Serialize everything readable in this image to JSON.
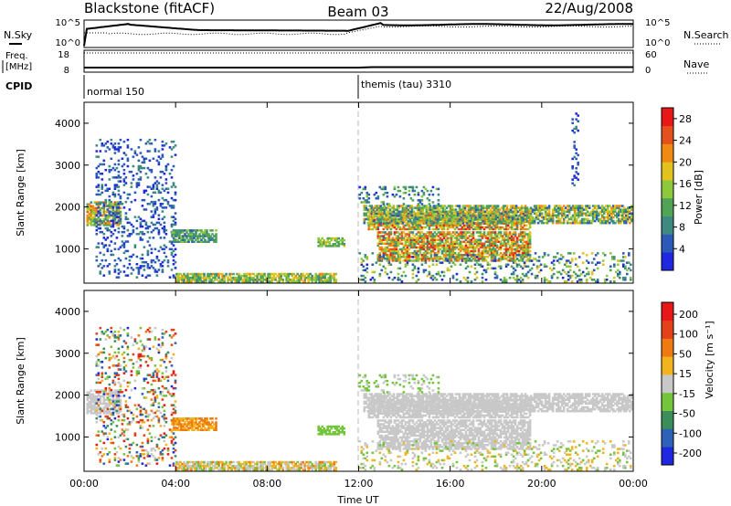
{
  "header": {
    "station": "Blackstone (fitACF)",
    "beam": "Beam 03",
    "date": "22/Aug/2008"
  },
  "top_panels": {
    "nsky_label": "N.Sky",
    "nsearch_label": "N.Search",
    "freq_label_1": "Freq.",
    "freq_label_2": "[MHz]",
    "nave_label": "Nave",
    "cpid_label": "CPID",
    "count_ticks": [
      "10^5",
      "10^0"
    ],
    "freq_ticks": [
      "18",
      "8"
    ],
    "nave_ticks": [
      "60",
      "0"
    ],
    "cpid_modes": [
      {
        "label": "normal 150",
        "start_hour": 0,
        "end_hour": 12
      },
      {
        "label": "themis (tau) 3310",
        "start_hour": 12,
        "end_hour": 24
      }
    ]
  },
  "chart_data": [
    {
      "type": "heatmap",
      "name": "power",
      "ylabel": "Slant Range [km]",
      "xlabel": "",
      "xlim": [
        0,
        24
      ],
      "ylim": [
        180,
        4500
      ],
      "y_ticks": [
        1000,
        2000,
        3000,
        4000
      ],
      "x_ticks": [
        "00:00",
        "04:00",
        "08:00",
        "12:00",
        "16:00",
        "20:00",
        "00:00"
      ],
      "colorbar_label": "Power [dB]",
      "colorbar_ticks": [
        4,
        8,
        12,
        16,
        20,
        24,
        28
      ],
      "colorbar_range": [
        0,
        30
      ],
      "colors": [
        "#1f28e0",
        "#2d59b8",
        "#3e8a80",
        "#51a455",
        "#8ec83c",
        "#e2c21c",
        "#f08a12",
        "#e4511c",
        "#e81818"
      ],
      "regions": [
        {
          "t": [
            0.1,
            1.6
          ],
          "r": [
            1550,
            2100
          ],
          "level": [
            2,
            7
          ]
        },
        {
          "t": [
            0.5,
            4.0
          ],
          "r": [
            300,
            3600
          ],
          "level": [
            0,
            2
          ],
          "sparse": true
        },
        {
          "t": [
            3.8,
            5.8
          ],
          "r": [
            1150,
            1450
          ],
          "level": [
            1,
            4
          ]
        },
        {
          "t": [
            4.0,
            11.0
          ],
          "r": [
            200,
            420
          ],
          "level": [
            2,
            6
          ]
        },
        {
          "t": [
            10.2,
            11.4
          ],
          "r": [
            1050,
            1250
          ],
          "level": [
            2,
            5
          ]
        },
        {
          "t": [
            12.4,
            19.5
          ],
          "r": [
            1450,
            1900
          ],
          "level": [
            2,
            8
          ]
        },
        {
          "t": [
            12.8,
            19.5
          ],
          "r": [
            700,
            1400
          ],
          "level": [
            2,
            8
          ]
        },
        {
          "t": [
            12.2,
            23.9
          ],
          "r": [
            1600,
            2050
          ],
          "level": [
            1,
            6
          ]
        },
        {
          "t": [
            12.0,
            15.5
          ],
          "r": [
            2050,
            2500
          ],
          "level": [
            0,
            4
          ],
          "sparse": true
        },
        {
          "t": [
            12.0,
            23.9
          ],
          "r": [
            200,
            900
          ],
          "level": [
            0,
            5
          ],
          "sparse": true
        },
        {
          "t": [
            21.3,
            21.6
          ],
          "r": [
            2500,
            4300
          ],
          "level": [
            0,
            2
          ],
          "sparse": true
        }
      ]
    },
    {
      "type": "heatmap",
      "name": "velocity",
      "ylabel": "Slant Range [km]",
      "xlabel": "Time UT",
      "xlim": [
        0,
        24
      ],
      "ylim": [
        180,
        4500
      ],
      "y_ticks": [
        1000,
        2000,
        3000,
        4000
      ],
      "x_ticks": [
        "00:00",
        "04:00",
        "08:00",
        "12:00",
        "16:00",
        "20:00",
        "00:00"
      ],
      "colorbar_label": "Velocity [m s⁻¹]",
      "colorbar_ticks": [
        "200",
        "100",
        "50",
        "15",
        "-15",
        "-50",
        "-100",
        "-200"
      ],
      "colors": [
        "#1f28e0",
        "#2e62b8",
        "#3b8e5a",
        "#74c53c",
        "#c8c8c8",
        "#f2b41c",
        "#f07a12",
        "#e4401a",
        "#e81818"
      ],
      "regions": [
        {
          "t": [
            0.1,
            1.6
          ],
          "r": [
            1550,
            2100
          ],
          "level": [
            4,
            4
          ]
        },
        {
          "t": [
            0.5,
            4.0
          ],
          "r": [
            300,
            3600
          ],
          "level": [
            0,
            8
          ],
          "sparse": true
        },
        {
          "t": [
            3.8,
            5.8
          ],
          "r": [
            1150,
            1450
          ],
          "level": [
            5,
            6
          ]
        },
        {
          "t": [
            4.0,
            11.0
          ],
          "r": [
            200,
            420
          ],
          "level": [
            3,
            6
          ]
        },
        {
          "t": [
            10.2,
            11.4
          ],
          "r": [
            1050,
            1250
          ],
          "level": [
            3,
            3
          ]
        },
        {
          "t": [
            12.4,
            19.5
          ],
          "r": [
            1450,
            1900
          ],
          "level": [
            4,
            4
          ]
        },
        {
          "t": [
            12.8,
            19.5
          ],
          "r": [
            700,
            1400
          ],
          "level": [
            4,
            4
          ]
        },
        {
          "t": [
            12.2,
            23.9
          ],
          "r": [
            1600,
            2050
          ],
          "level": [
            4,
            4
          ]
        },
        {
          "t": [
            12.0,
            15.5
          ],
          "r": [
            2050,
            2500
          ],
          "level": [
            3,
            4
          ],
          "sparse": true
        },
        {
          "t": [
            12.0,
            23.9
          ],
          "r": [
            200,
            900
          ],
          "level": [
            3,
            5
          ],
          "sparse": true
        }
      ]
    }
  ]
}
